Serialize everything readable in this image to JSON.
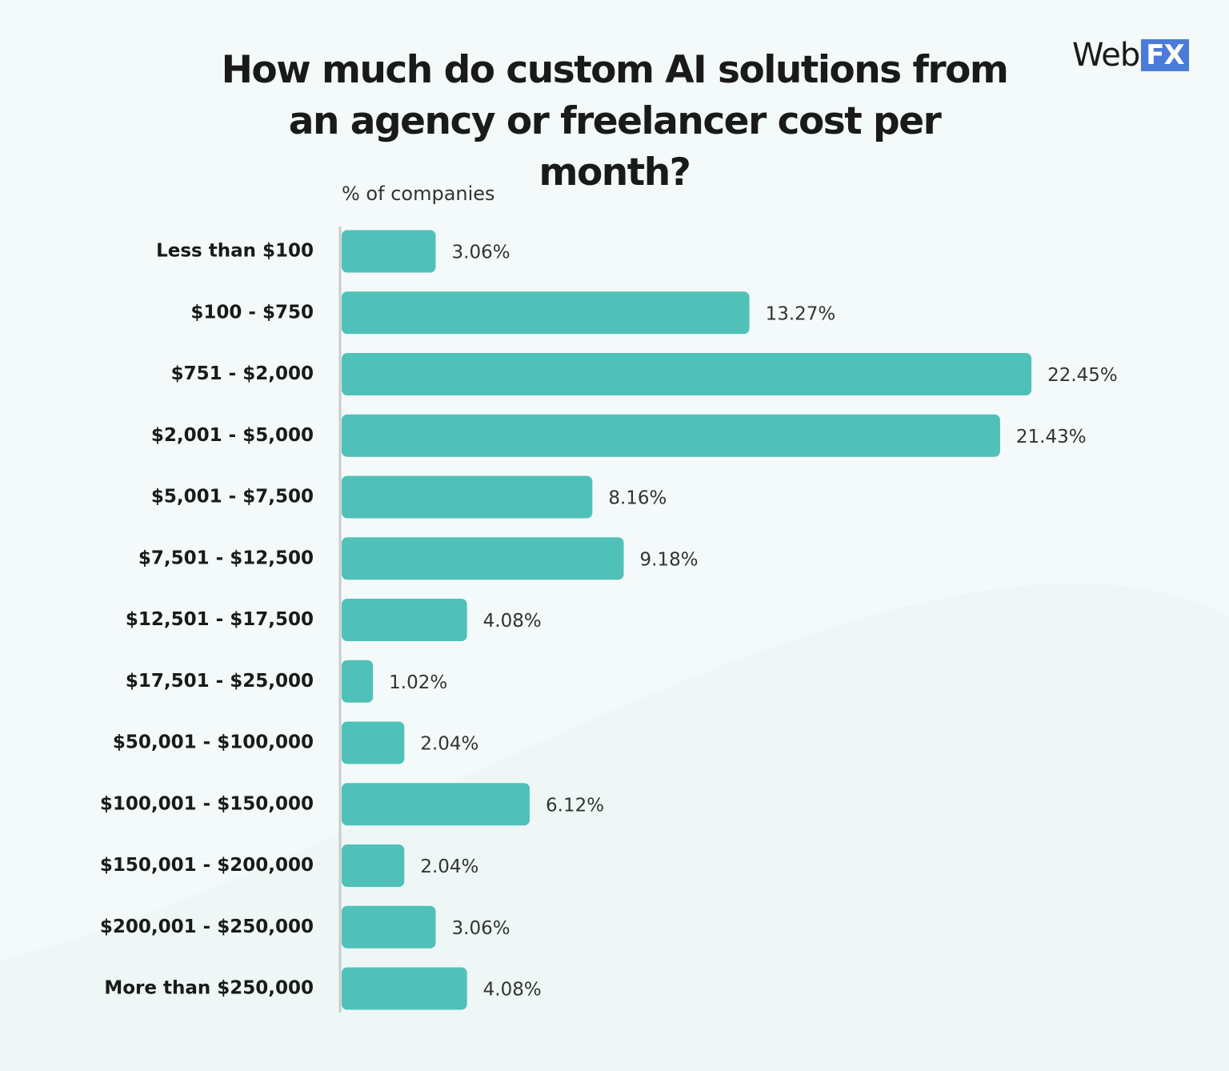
{
  "chart_data": {
    "type": "bar",
    "orientation": "horizontal",
    "title": "How much do custom AI solutions from an agency or freelancer cost per month?",
    "logo": {
      "text": "Web",
      "badge": "FX"
    },
    "x_label": "% of companies",
    "color": "#4fc1b9",
    "categories": [
      "Less than $100",
      "$100 - $750",
      "$751 - $2,000",
      "$2,001 - $5,000",
      "$5,001 - $7,500",
      "$7,501 - $12,500",
      "$12,501 - $17,500",
      "$17,501 - $25,000",
      "$50,001 - $100,000",
      "$100,001 - $150,000",
      "$150,001 - $200,000",
      "$200,001 - $250,000",
      "More than $250,000"
    ],
    "values": [
      3.06,
      13.27,
      22.45,
      21.43,
      8.16,
      9.18,
      4.08,
      1.02,
      2.04,
      6.12,
      2.04,
      3.06,
      4.08
    ],
    "value_labels": [
      "3.06%",
      "13.27%",
      "22.45%",
      "21.43%",
      "8.16%",
      "9.18%",
      "4.08%",
      "1.02%",
      "2.04%",
      "6.12%",
      "2.04%",
      "3.06%",
      "4.08%"
    ]
  }
}
